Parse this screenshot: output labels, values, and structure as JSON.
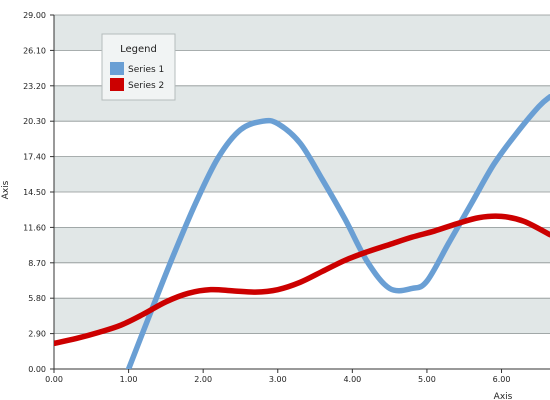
{
  "chart_data": {
    "type": "line",
    "title": "",
    "xlabel": "Axis",
    "ylabel": "Axis",
    "xlim": [
      0,
      6.65
    ],
    "ylim": [
      0,
      29
    ],
    "grid": "horizontal-bands",
    "legend_position": "top-left",
    "legend_title": "Legend",
    "x_ticks": [
      "0.00",
      "1.00",
      "2.00",
      "3.00",
      "4.00",
      "5.00",
      "6.00"
    ],
    "y_ticks": [
      "0.00",
      "2.90",
      "5.80",
      "8.70",
      "11.60",
      "14.50",
      "17.40",
      "20.30",
      "23.20",
      "26.10",
      "29.00"
    ],
    "series": [
      {
        "name": "Series 1",
        "color": "#6a9fd4",
        "x": [
          1.0,
          1.3,
          1.6,
          1.9,
          2.2,
          2.5,
          2.8,
          3.0,
          3.3,
          3.6,
          3.9,
          4.2,
          4.5,
          4.8,
          5.0,
          5.3,
          5.6,
          5.9,
          6.2,
          6.5,
          6.65
        ],
        "y": [
          0.0,
          4.7,
          9.3,
          13.6,
          17.3,
          19.6,
          20.3,
          20.1,
          18.5,
          15.5,
          12.3,
          8.8,
          6.6,
          6.6,
          7.2,
          10.4,
          13.6,
          16.8,
          19.3,
          21.5,
          22.3
        ]
      },
      {
        "name": "Series 2",
        "color": "#cc0000",
        "x": [
          0.0,
          0.3,
          0.6,
          0.9,
          1.2,
          1.5,
          1.8,
          2.1,
          2.4,
          2.7,
          3.0,
          3.3,
          3.6,
          3.9,
          4.2,
          4.5,
          4.8,
          5.1,
          5.4,
          5.7,
          6.0,
          6.3,
          6.65
        ],
        "y": [
          2.1,
          2.5,
          3.0,
          3.6,
          4.5,
          5.5,
          6.2,
          6.5,
          6.4,
          6.3,
          6.5,
          7.1,
          8.0,
          8.9,
          9.6,
          10.2,
          10.8,
          11.3,
          11.9,
          12.4,
          12.5,
          12.1,
          11.0
        ]
      }
    ]
  }
}
